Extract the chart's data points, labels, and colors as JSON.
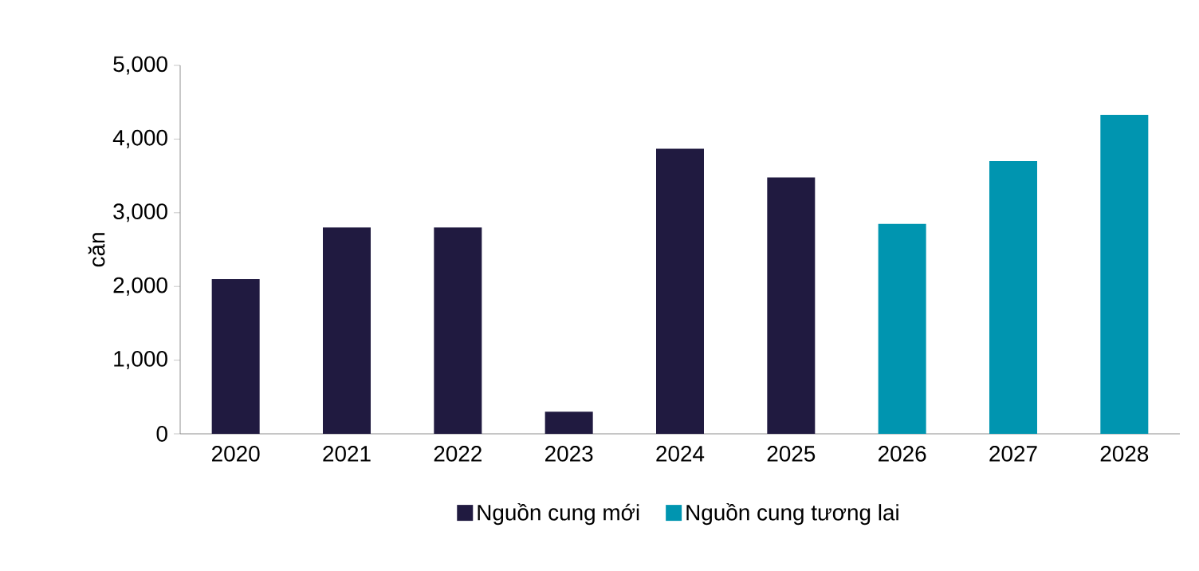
{
  "chart_data": {
    "type": "bar",
    "ylabel": "căn",
    "categories": [
      "2020",
      "2021",
      "2022",
      "2023",
      "2024",
      "2025",
      "2026",
      "2027",
      "2028"
    ],
    "series": [
      {
        "name": "Nguồn cung mới",
        "color": "#201a40",
        "values": [
          2100,
          2800,
          2800,
          300,
          3870,
          3480,
          null,
          null,
          null
        ]
      },
      {
        "name": "Nguồn cung tương lai",
        "color": "#0095b0",
        "values": [
          null,
          null,
          null,
          null,
          null,
          null,
          2850,
          3700,
          4330
        ]
      }
    ],
    "ylim": [
      0,
      5000
    ],
    "yticks": [
      {
        "value": 0,
        "label": "0"
      },
      {
        "value": 1000,
        "label": "1,000"
      },
      {
        "value": 2000,
        "label": "2,000"
      },
      {
        "value": 3000,
        "label": "3,000"
      },
      {
        "value": 4000,
        "label": "4,000"
      },
      {
        "value": 5000,
        "label": "5,000"
      }
    ],
    "legend": "bottom",
    "grid": false
  }
}
